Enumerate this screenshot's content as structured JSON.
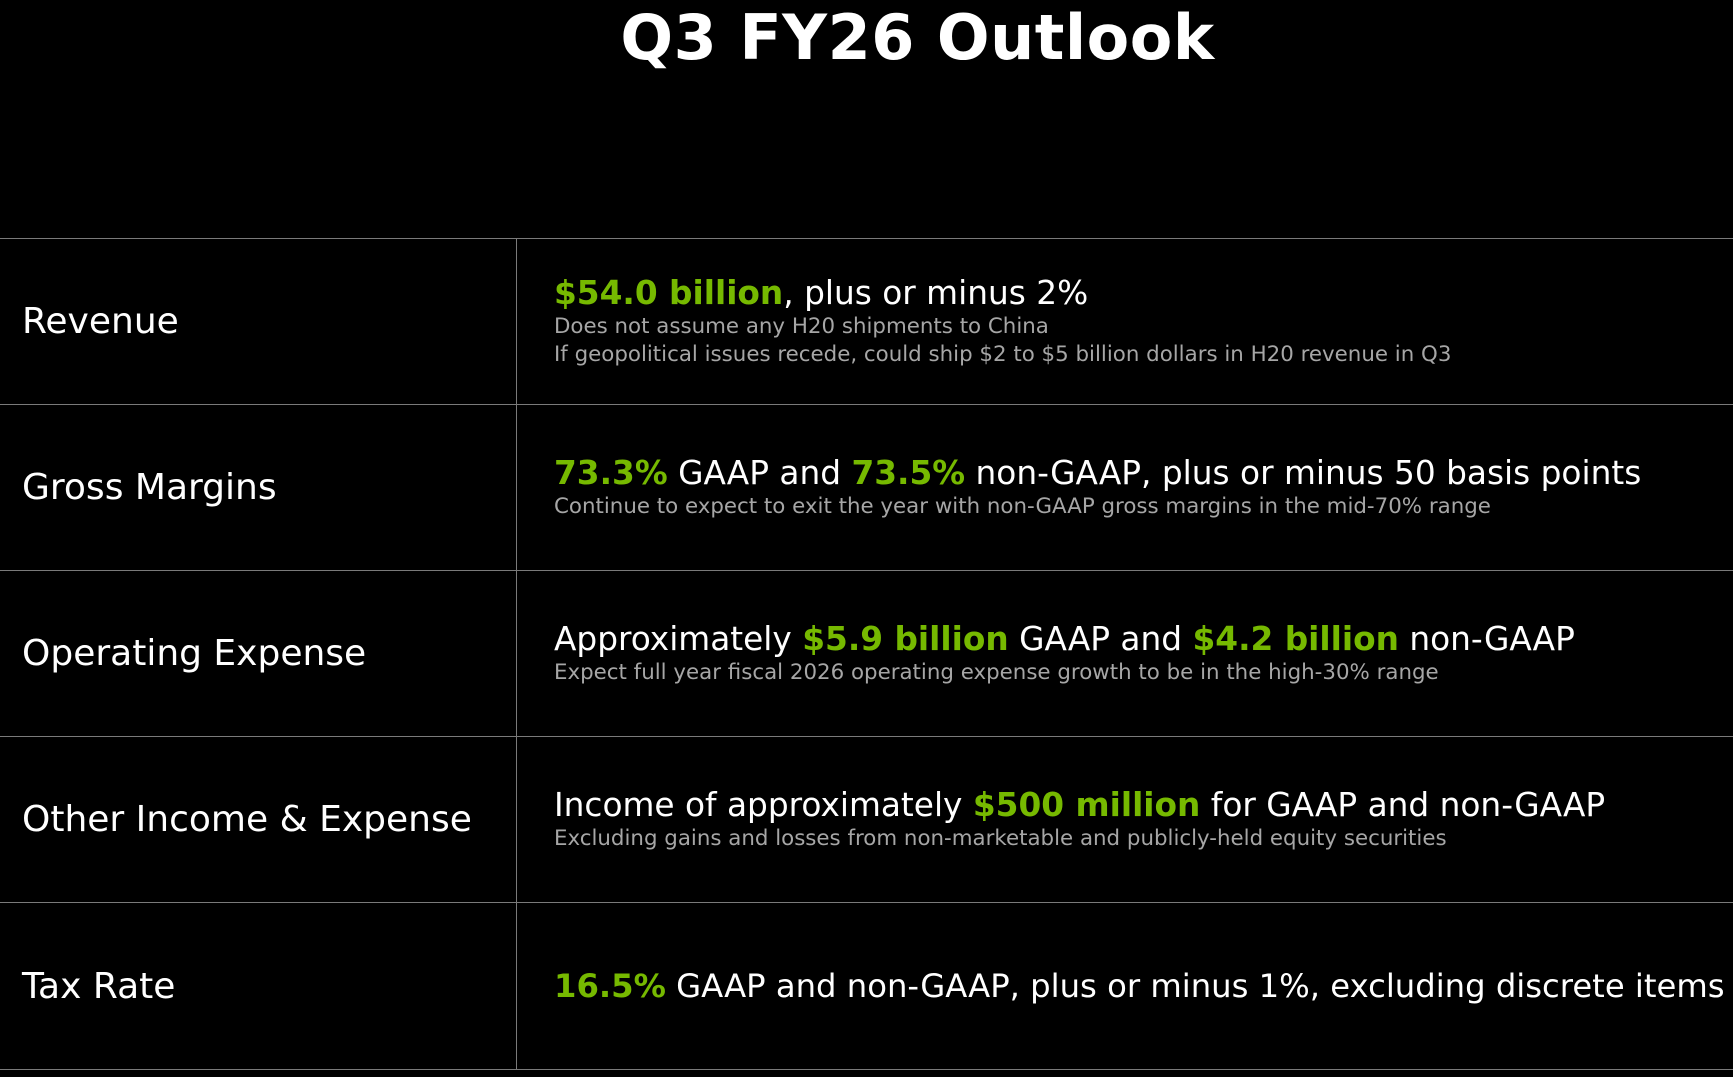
{
  "title": "Q3 FY26 Outlook",
  "accent_color": "#76b900",
  "rows": [
    {
      "label": "Revenue",
      "main": {
        "h1": "$54.0 billion",
        "t1": ", plus or minus 2%"
      },
      "notes": [
        "Does not assume any H20 shipments to China",
        "If geopolitical issues recede, could ship $2 to $5 billion dollars in H20 revenue in Q3"
      ]
    },
    {
      "label": "Gross Margins",
      "main": {
        "h1": "73.3%",
        "t1": " GAAP and ",
        "h2": "73.5%",
        "t2": " non-GAAP, plus or minus 50 basis points"
      },
      "notes": [
        "Continue to expect to exit the year with non-GAAP gross margins in the mid-70% range"
      ]
    },
    {
      "label": "Operating Expense",
      "main": {
        "t0": "Approximately ",
        "h1": "$5.9 billion",
        "t1": " GAAP and ",
        "h2": "$4.2 billion",
        "t2": " non-GAAP"
      },
      "notes": [
        "Expect full year fiscal 2026 operating expense growth to be in the high-30% range"
      ]
    },
    {
      "label": "Other Income & Expense",
      "main": {
        "t0": "Income of approximately ",
        "h1": "$500 million",
        "t1": " for GAAP and non-GAAP"
      },
      "notes": [
        "Excluding gains and losses from non-marketable and publicly-held equity securities"
      ]
    },
    {
      "label": "Tax Rate",
      "main": {
        "h1": "16.5%",
        "t1": " GAAP and non-GAAP, plus or minus 1%, excluding discrete items"
      },
      "notes": []
    }
  ]
}
